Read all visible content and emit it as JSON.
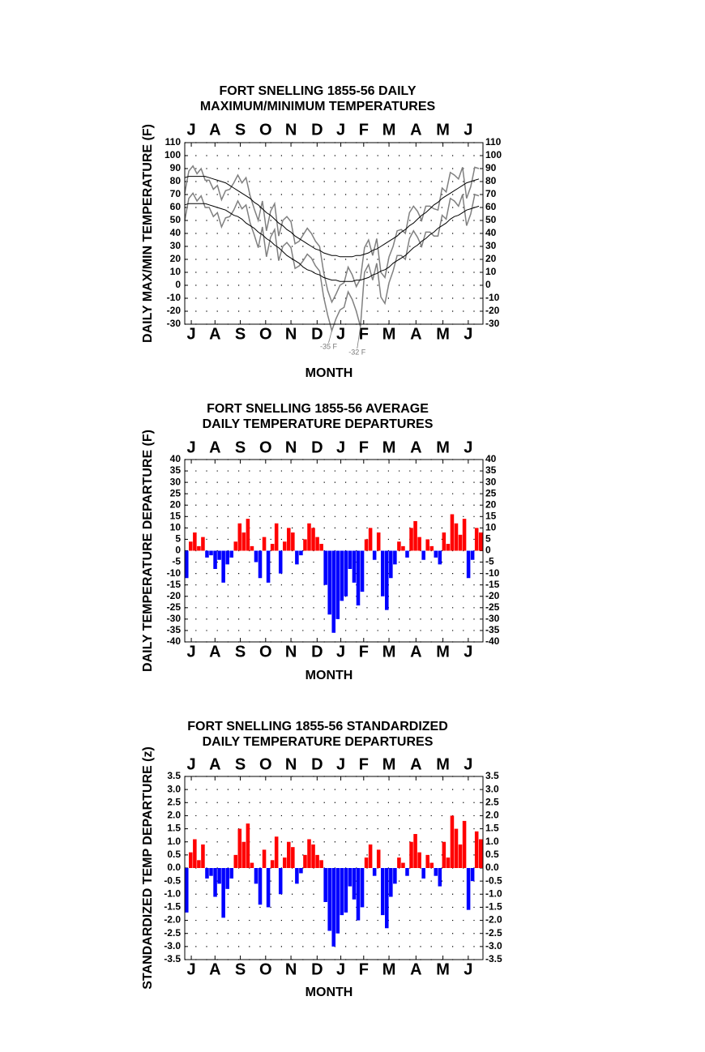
{
  "chart_data": [
    {
      "type": "line",
      "title": [
        "FORT SNELLING 1855-56 DAILY",
        "MAXIMUM/MINIMUM TEMPERATURES"
      ],
      "ylabel": "DAILY MAX/MIN TEMPERATURE (F)",
      "xlabel": "MONTH",
      "x": [
        0,
        5,
        10,
        15,
        20,
        25,
        30,
        35,
        40,
        45,
        50,
        55,
        60,
        65,
        70,
        75,
        80,
        85,
        90,
        95,
        100,
        105,
        110,
        115,
        120,
        125,
        130,
        135,
        140,
        145,
        150,
        155,
        160,
        165,
        170,
        175,
        180,
        185,
        190,
        195,
        200,
        205,
        210,
        215,
        220,
        225,
        230,
        235,
        240,
        245,
        250,
        255,
        260,
        265,
        270,
        275,
        280,
        285,
        290,
        295,
        300,
        305,
        310,
        315,
        320,
        325,
        330,
        335,
        340,
        345,
        350,
        355,
        360
      ],
      "xlim": [
        0,
        365
      ],
      "xticks": [
        {
          "value": 8,
          "label": "J"
        },
        {
          "value": 37,
          "label": "A"
        },
        {
          "value": 68,
          "label": "S"
        },
        {
          "value": 99,
          "label": "O"
        },
        {
          "value": 130,
          "label": "N"
        },
        {
          "value": 162,
          "label": "D"
        },
        {
          "value": 191,
          "label": "J"
        },
        {
          "value": 219,
          "label": "F"
        },
        {
          "value": 250,
          "label": "M"
        },
        {
          "value": 283,
          "label": "A"
        },
        {
          "value": 316,
          "label": "M"
        },
        {
          "value": 347,
          "label": "J"
        }
      ],
      "ylim": [
        -30,
        110
      ],
      "yticks": [
        -30,
        -20,
        -10,
        0,
        10,
        20,
        30,
        40,
        50,
        60,
        70,
        80,
        90,
        100,
        110
      ],
      "grid": true,
      "series": [
        {
          "color": "#808080",
          "values": [
            71,
            88,
            92,
            86,
            90,
            81,
            81,
            74,
            77,
            66,
            73,
            74,
            79,
            85,
            79,
            83,
            69,
            59,
            50,
            65,
            42,
            57,
            63,
            38,
            50,
            53,
            49,
            32,
            34,
            39,
            44,
            40,
            34,
            30,
            10,
            -4,
            -13,
            -7,
            0,
            2,
            14,
            8,
            -1,
            5,
            29,
            35,
            23,
            36,
            10,
            6,
            22,
            30,
            42,
            43,
            40,
            56,
            61,
            57,
            50,
            61,
            61,
            59,
            58,
            75,
            72,
            87,
            85,
            82,
            91,
            67,
            76,
            91,
            90
          ]
        },
        {
          "color": "#808080",
          "values": [
            50,
            67,
            71,
            65,
            69,
            60,
            60,
            53,
            56,
            45,
            52,
            53,
            58,
            65,
            59,
            62,
            48,
            39,
            29,
            45,
            22,
            37,
            43,
            19,
            30,
            33,
            29,
            13,
            15,
            19,
            24,
            21,
            15,
            11,
            -9,
            -23,
            -35,
            -26,
            -19,
            -17,
            -5,
            -11,
            -20,
            -32,
            10,
            16,
            4,
            17,
            -9,
            -14,
            2,
            11,
            23,
            23,
            20,
            36,
            42,
            37,
            30,
            41,
            41,
            38,
            38,
            54,
            51,
            67,
            65,
            61,
            70,
            46,
            55,
            70,
            69
          ]
        },
        {
          "color": "#000000",
          "values": [
            83,
            84,
            84,
            84,
            84,
            84,
            83,
            82,
            81,
            80,
            79,
            77,
            75,
            73,
            71,
            69,
            67,
            64,
            62,
            59,
            56,
            54,
            51,
            48,
            46,
            43,
            41,
            38,
            36,
            34,
            32,
            30,
            28,
            27,
            25,
            24,
            23,
            23,
            22,
            22,
            22,
            22,
            23,
            23,
            24,
            25,
            27,
            28,
            30,
            32,
            34,
            36,
            38,
            41,
            43,
            46,
            48,
            51,
            54,
            56,
            59,
            62,
            64,
            67,
            69,
            71,
            73,
            75,
            77,
            79,
            80,
            81,
            82
          ]
        },
        {
          "color": "#000000",
          "values": [
            62,
            63,
            63,
            63,
            63,
            63,
            62,
            61,
            60,
            59,
            58,
            56,
            54,
            53,
            51,
            48,
            46,
            44,
            41,
            39,
            36,
            34,
            31,
            29,
            26,
            23,
            21,
            19,
            17,
            14,
            12,
            11,
            9,
            8,
            6,
            5,
            4,
            4,
            3,
            3,
            3,
            3,
            4,
            4,
            5,
            6,
            8,
            9,
            11,
            12,
            14,
            17,
            19,
            21,
            23,
            26,
            29,
            31,
            34,
            36,
            39,
            41,
            44,
            46,
            48,
            51,
            53,
            54,
            56,
            58,
            59,
            60,
            61
          ]
        }
      ],
      "annotations": [
        {
          "text": "-35 F",
          "x": 180,
          "y": -35
        },
        {
          "text": "-32 F",
          "x": 215,
          "y": -32
        }
      ]
    },
    {
      "type": "bar",
      "title": [
        "FORT SNELLING 1855-56 AVERAGE",
        "DAILY TEMPERATURE DEPARTURES"
      ],
      "ylabel": "DAILY TEMPERATURE DEPARTURE (F)",
      "xlabel": "MONTH",
      "x": [
        0,
        5,
        10,
        15,
        20,
        25,
        30,
        35,
        40,
        45,
        50,
        55,
        60,
        65,
        70,
        75,
        80,
        85,
        90,
        95,
        100,
        105,
        110,
        115,
        120,
        125,
        130,
        135,
        140,
        145,
        150,
        155,
        160,
        165,
        170,
        175,
        180,
        185,
        190,
        195,
        200,
        205,
        210,
        215,
        220,
        225,
        230,
        235,
        240,
        245,
        250,
        255,
        260,
        265,
        270,
        275,
        280,
        285,
        290,
        295,
        300,
        305,
        310,
        315,
        320,
        325,
        330,
        335,
        340,
        345,
        350,
        355,
        360
      ],
      "xlim": [
        0,
        365
      ],
      "xticks": [
        {
          "value": 8,
          "label": "J"
        },
        {
          "value": 37,
          "label": "A"
        },
        {
          "value": 68,
          "label": "S"
        },
        {
          "value": 99,
          "label": "O"
        },
        {
          "value": 130,
          "label": "N"
        },
        {
          "value": 162,
          "label": "D"
        },
        {
          "value": 191,
          "label": "J"
        },
        {
          "value": 219,
          "label": "F"
        },
        {
          "value": 250,
          "label": "M"
        },
        {
          "value": 283,
          "label": "A"
        },
        {
          "value": 316,
          "label": "M"
        },
        {
          "value": 347,
          "label": "J"
        }
      ],
      "ylim": [
        -40,
        40
      ],
      "yticks": [
        -40,
        -35,
        -30,
        -25,
        -20,
        -15,
        -10,
        -5,
        0,
        5,
        10,
        15,
        20,
        25,
        30,
        35,
        40
      ],
      "grid": true,
      "color_positive": "#ff0000",
      "color_negative": "#0000ff",
      "values": [
        -12,
        4,
        8,
        2,
        6,
        -3,
        -2,
        -8,
        -4,
        -14,
        -6,
        -3,
        4,
        12,
        8,
        14,
        2,
        -5,
        -12,
        6,
        -14,
        3,
        12,
        -10,
        4,
        10,
        8,
        -6,
        -2,
        5,
        12,
        10,
        6,
        3,
        -15,
        -28,
        -36,
        -30,
        -22,
        -20,
        -8,
        -14,
        -24,
        -18,
        5,
        10,
        -4,
        8,
        -20,
        -26,
        -12,
        -6,
        4,
        2,
        -3,
        10,
        13,
        6,
        -4,
        5,
        2,
        -3,
        -6,
        8,
        3,
        16,
        12,
        7,
        14,
        -12,
        -4,
        10,
        8
      ]
    },
    {
      "type": "bar",
      "title": [
        "FORT SNELLING 1855-56 STANDARDIZED",
        "DAILY TEMPERATURE DEPARTURES"
      ],
      "ylabel": "STANDARDIZED TEMP DEPARTURE (z)",
      "xlabel": "MONTH",
      "x": [
        0,
        5,
        10,
        15,
        20,
        25,
        30,
        35,
        40,
        45,
        50,
        55,
        60,
        65,
        70,
        75,
        80,
        85,
        90,
        95,
        100,
        105,
        110,
        115,
        120,
        125,
        130,
        135,
        140,
        145,
        150,
        155,
        160,
        165,
        170,
        175,
        180,
        185,
        190,
        195,
        200,
        205,
        210,
        215,
        220,
        225,
        230,
        235,
        240,
        245,
        250,
        255,
        260,
        265,
        270,
        275,
        280,
        285,
        290,
        295,
        300,
        305,
        310,
        315,
        320,
        325,
        330,
        335,
        340,
        345,
        350,
        355,
        360
      ],
      "xlim": [
        0,
        365
      ],
      "xticks": [
        {
          "value": 8,
          "label": "J"
        },
        {
          "value": 37,
          "label": "A"
        },
        {
          "value": 68,
          "label": "S"
        },
        {
          "value": 99,
          "label": "O"
        },
        {
          "value": 130,
          "label": "N"
        },
        {
          "value": 162,
          "label": "D"
        },
        {
          "value": 191,
          "label": "J"
        },
        {
          "value": 219,
          "label": "F"
        },
        {
          "value": 250,
          "label": "M"
        },
        {
          "value": 283,
          "label": "A"
        },
        {
          "value": 316,
          "label": "M"
        },
        {
          "value": 347,
          "label": "J"
        }
      ],
      "ylim": [
        -3.5,
        3.5
      ],
      "yticks": [
        -3.5,
        {
          "value": -3,
          "label": "-3.0"
        },
        -2.5,
        {
          "value": -2,
          "label": "-2.0"
        },
        -1.5,
        {
          "value": -1,
          "label": "-1.0"
        },
        -0.5,
        {
          "value": 0,
          "label": "0.0"
        },
        0.5,
        {
          "value": 1,
          "label": "1.0"
        },
        1.5,
        {
          "value": 2,
          "label": "2.0"
        },
        2.5,
        {
          "value": 3,
          "label": "3.0"
        },
        3.5
      ],
      "grid": true,
      "color_positive": "#ff0000",
      "color_negative": "#0000ff",
      "values": [
        -1.7,
        0.6,
        1.1,
        0.3,
        0.9,
        -0.4,
        -0.3,
        -1.1,
        -0.6,
        -1.9,
        -0.8,
        -0.4,
        0.5,
        1.5,
        1.0,
        1.7,
        0.2,
        -0.6,
        -1.4,
        0.7,
        -1.5,
        0.3,
        1.2,
        -1.0,
        0.4,
        1.0,
        0.8,
        -0.6,
        -0.2,
        0.5,
        1.1,
        0.9,
        0.5,
        0.3,
        -1.3,
        -2.4,
        -3.0,
        -2.5,
        -1.8,
        -1.7,
        -0.7,
        -1.2,
        -2.0,
        -1.5,
        0.4,
        0.9,
        -0.3,
        0.7,
        -1.8,
        -2.3,
        -1.1,
        -0.6,
        0.4,
        0.2,
        -0.3,
        1.0,
        1.3,
        0.6,
        -0.4,
        0.5,
        0.2,
        -0.3,
        -0.7,
        1.0,
        0.4,
        2.0,
        1.5,
        0.9,
        1.8,
        -1.6,
        -0.5,
        1.4,
        1.1
      ]
    }
  ]
}
